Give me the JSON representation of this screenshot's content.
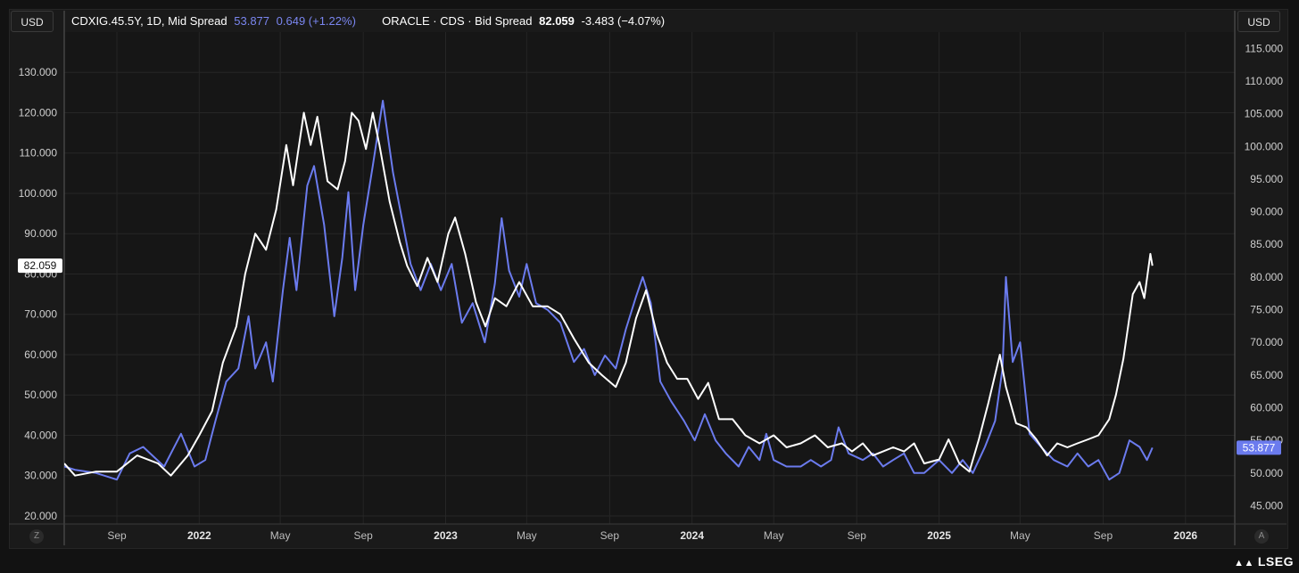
{
  "currency_left": "USD",
  "currency_right": "USD",
  "legend": {
    "series1_name": "CDXIG.45.5Y, 1D, Mid Spread",
    "series1_value": "53.877",
    "series1_change": "0.649 (+1.22%)",
    "series2_name": "ORACLE · CDS · Bid Spread",
    "series2_value": "82.059",
    "series2_change": "-3.483 (−4.07%)"
  },
  "corner_left": "Z",
  "corner_right": "A",
  "watermark": "LSEG",
  "colors": {
    "series1": "#6b7bee",
    "series2": "#ffffff",
    "grid": "#262626"
  },
  "chart_data": {
    "type": "line",
    "left_axis": {
      "ylim": [
        18,
        140
      ],
      "ticks": [
        "20.000",
        "30.000",
        "40.000",
        "50.000",
        "60.000",
        "70.000",
        "80.000",
        "90.000",
        "100.000",
        "110.000",
        "120.000",
        "130.000"
      ],
      "tick_values": [
        20,
        30,
        40,
        50,
        60,
        70,
        80,
        90,
        100,
        110,
        120,
        130
      ],
      "last_value_label": "82.059"
    },
    "right_axis": {
      "ylim": [
        42.2,
        117.5
      ],
      "ticks": [
        "45.000",
        "50.000",
        "55.000",
        "60.000",
        "65.000",
        "70.000",
        "75.000",
        "80.000",
        "85.000",
        "90.000",
        "95.000",
        "100.000",
        "105.000",
        "110.000",
        "115.000"
      ],
      "tick_values": [
        45,
        50,
        55,
        60,
        65,
        70,
        75,
        80,
        85,
        90,
        95,
        100,
        105,
        110,
        115
      ],
      "last_value_label": "53.877"
    },
    "x_axis": {
      "range": [
        "2021-06-15",
        "2026-03-15"
      ],
      "ticks": [
        {
          "label": "Sep",
          "date": "2021-09-01",
          "bold": false
        },
        {
          "label": "2022",
          "date": "2022-01-01",
          "bold": true
        },
        {
          "label": "May",
          "date": "2022-05-01",
          "bold": false
        },
        {
          "label": "Sep",
          "date": "2022-09-01",
          "bold": false
        },
        {
          "label": "2023",
          "date": "2023-01-01",
          "bold": true
        },
        {
          "label": "May",
          "date": "2023-05-01",
          "bold": false
        },
        {
          "label": "Sep",
          "date": "2023-09-01",
          "bold": false
        },
        {
          "label": "2024",
          "date": "2024-01-01",
          "bold": true
        },
        {
          "label": "May",
          "date": "2024-05-01",
          "bold": false
        },
        {
          "label": "Sep",
          "date": "2024-09-01",
          "bold": false
        },
        {
          "label": "2025",
          "date": "2025-01-01",
          "bold": true
        },
        {
          "label": "May",
          "date": "2025-05-01",
          "bold": false
        },
        {
          "label": "Sep",
          "date": "2025-09-01",
          "bold": false
        },
        {
          "label": "2026",
          "date": "2026-01-01",
          "bold": true
        }
      ]
    },
    "grid": true,
    "series": [
      {
        "name": "ORACLE · CDS · Bid Spread",
        "axis": "left",
        "points": [
          [
            "2021-06-15",
            33
          ],
          [
            "2021-07-01",
            30
          ],
          [
            "2021-08-01",
            31
          ],
          [
            "2021-09-01",
            31
          ],
          [
            "2021-10-01",
            35
          ],
          [
            "2021-11-01",
            33
          ],
          [
            "2021-11-20",
            30
          ],
          [
            "2021-12-15",
            35
          ],
          [
            "2022-01-01",
            40
          ],
          [
            "2022-01-20",
            46
          ],
          [
            "2022-02-05",
            58
          ],
          [
            "2022-02-25",
            67
          ],
          [
            "2022-03-10",
            80
          ],
          [
            "2022-03-25",
            90
          ],
          [
            "2022-04-10",
            86
          ],
          [
            "2022-04-25",
            96
          ],
          [
            "2022-05-10",
            112
          ],
          [
            "2022-05-20",
            102
          ],
          [
            "2022-06-05",
            120
          ],
          [
            "2022-06-15",
            112
          ],
          [
            "2022-06-25",
            119
          ],
          [
            "2022-07-10",
            103
          ],
          [
            "2022-07-25",
            101
          ],
          [
            "2022-08-05",
            108
          ],
          [
            "2022-08-15",
            120
          ],
          [
            "2022-08-25",
            118
          ],
          [
            "2022-09-05",
            111
          ],
          [
            "2022-09-15",
            120
          ],
          [
            "2022-09-25",
            112
          ],
          [
            "2022-10-10",
            98
          ],
          [
            "2022-10-25",
            88
          ],
          [
            "2022-11-05",
            82
          ],
          [
            "2022-11-20",
            77
          ],
          [
            "2022-12-05",
            84
          ],
          [
            "2022-12-20",
            78
          ],
          [
            "2023-01-05",
            90
          ],
          [
            "2023-01-15",
            94
          ],
          [
            "2023-01-30",
            85
          ],
          [
            "2023-02-15",
            73
          ],
          [
            "2023-03-01",
            67
          ],
          [
            "2023-03-15",
            74
          ],
          [
            "2023-04-01",
            72
          ],
          [
            "2023-04-20",
            78
          ],
          [
            "2023-05-10",
            72
          ],
          [
            "2023-06-01",
            72
          ],
          [
            "2023-06-20",
            70
          ],
          [
            "2023-07-10",
            64
          ],
          [
            "2023-08-01",
            58
          ],
          [
            "2023-08-20",
            55
          ],
          [
            "2023-09-10",
            52
          ],
          [
            "2023-09-25",
            58
          ],
          [
            "2023-10-10",
            69
          ],
          [
            "2023-10-25",
            76
          ],
          [
            "2023-11-10",
            65
          ],
          [
            "2023-11-25",
            58
          ],
          [
            "2023-12-10",
            54
          ],
          [
            "2023-12-25",
            54
          ],
          [
            "2024-01-10",
            49
          ],
          [
            "2024-01-25",
            53
          ],
          [
            "2024-02-10",
            44
          ],
          [
            "2024-03-01",
            44
          ],
          [
            "2024-03-20",
            40
          ],
          [
            "2024-04-10",
            38
          ],
          [
            "2024-05-01",
            40
          ],
          [
            "2024-05-20",
            37
          ],
          [
            "2024-06-10",
            38
          ],
          [
            "2024-07-01",
            40
          ],
          [
            "2024-07-20",
            37
          ],
          [
            "2024-08-10",
            38
          ],
          [
            "2024-08-25",
            36
          ],
          [
            "2024-09-10",
            38
          ],
          [
            "2024-09-25",
            35
          ],
          [
            "2024-10-10",
            36
          ],
          [
            "2024-10-25",
            37
          ],
          [
            "2024-11-10",
            36
          ],
          [
            "2024-11-25",
            38
          ],
          [
            "2024-12-10",
            33
          ],
          [
            "2025-01-01",
            34
          ],
          [
            "2025-01-15",
            39
          ],
          [
            "2025-01-31",
            33
          ],
          [
            "2025-02-15",
            31
          ],
          [
            "2025-03-01",
            39
          ],
          [
            "2025-03-15",
            48
          ],
          [
            "2025-04-01",
            60
          ],
          [
            "2025-04-10",
            52
          ],
          [
            "2025-04-25",
            43
          ],
          [
            "2025-05-10",
            42
          ],
          [
            "2025-05-25",
            39
          ],
          [
            "2025-06-10",
            35
          ],
          [
            "2025-06-25",
            38
          ],
          [
            "2025-07-10",
            37
          ],
          [
            "2025-07-25",
            38
          ],
          [
            "2025-08-10",
            39
          ],
          [
            "2025-08-25",
            40
          ],
          [
            "2025-09-10",
            44
          ],
          [
            "2025-09-20",
            50
          ],
          [
            "2025-10-01",
            59
          ],
          [
            "2025-10-15",
            75
          ],
          [
            "2025-10-25",
            78
          ],
          [
            "2025-11-01",
            74
          ],
          [
            "2025-11-10",
            85
          ],
          [
            "2025-11-13",
            82.059
          ]
        ]
      },
      {
        "name": "CDXIG.45.5Y, 1D, Mid Spread",
        "axis": "right",
        "points": [
          [
            "2021-06-15",
            51
          ],
          [
            "2021-07-01",
            50.5
          ],
          [
            "2021-08-01",
            50
          ],
          [
            "2021-09-01",
            49
          ],
          [
            "2021-09-20",
            53
          ],
          [
            "2021-10-10",
            54
          ],
          [
            "2021-11-10",
            51
          ],
          [
            "2021-12-05",
            56
          ],
          [
            "2021-12-25",
            51
          ],
          [
            "2022-01-10",
            52
          ],
          [
            "2022-01-25",
            58
          ],
          [
            "2022-02-10",
            64
          ],
          [
            "2022-02-28",
            66
          ],
          [
            "2022-03-15",
            74
          ],
          [
            "2022-03-25",
            66
          ],
          [
            "2022-04-10",
            70
          ],
          [
            "2022-04-20",
            64
          ],
          [
            "2022-05-05",
            78
          ],
          [
            "2022-05-15",
            86
          ],
          [
            "2022-05-25",
            78
          ],
          [
            "2022-06-10",
            94
          ],
          [
            "2022-06-20",
            97
          ],
          [
            "2022-07-05",
            88
          ],
          [
            "2022-07-20",
            74
          ],
          [
            "2022-08-01",
            83
          ],
          [
            "2022-08-10",
            93
          ],
          [
            "2022-08-20",
            78
          ],
          [
            "2022-09-01",
            88
          ],
          [
            "2022-09-15",
            97
          ],
          [
            "2022-09-30",
            107
          ],
          [
            "2022-10-15",
            96
          ],
          [
            "2022-10-30",
            88
          ],
          [
            "2022-11-10",
            82
          ],
          [
            "2022-11-25",
            78
          ],
          [
            "2022-12-10",
            82
          ],
          [
            "2022-12-25",
            78
          ],
          [
            "2023-01-10",
            82
          ],
          [
            "2023-01-25",
            73
          ],
          [
            "2023-02-10",
            76
          ],
          [
            "2023-02-28",
            70
          ],
          [
            "2023-03-15",
            79
          ],
          [
            "2023-03-25",
            89
          ],
          [
            "2023-04-05",
            81
          ],
          [
            "2023-04-20",
            77
          ],
          [
            "2023-05-01",
            82
          ],
          [
            "2023-05-15",
            76
          ],
          [
            "2023-06-01",
            75
          ],
          [
            "2023-06-20",
            73
          ],
          [
            "2023-07-10",
            67
          ],
          [
            "2023-07-25",
            69
          ],
          [
            "2023-08-10",
            65
          ],
          [
            "2023-08-25",
            68
          ],
          [
            "2023-09-10",
            66
          ],
          [
            "2023-09-25",
            72
          ],
          [
            "2023-10-10",
            77
          ],
          [
            "2023-10-20",
            80
          ],
          [
            "2023-11-01",
            76
          ],
          [
            "2023-11-15",
            64
          ],
          [
            "2023-12-01",
            61
          ],
          [
            "2023-12-20",
            58
          ],
          [
            "2024-01-05",
            55
          ],
          [
            "2024-01-20",
            59
          ],
          [
            "2024-02-05",
            55
          ],
          [
            "2024-02-20",
            53
          ],
          [
            "2024-03-10",
            51
          ],
          [
            "2024-03-25",
            54
          ],
          [
            "2024-04-10",
            52
          ],
          [
            "2024-04-20",
            56
          ],
          [
            "2024-05-01",
            52
          ],
          [
            "2024-05-20",
            51
          ],
          [
            "2024-06-10",
            51
          ],
          [
            "2024-06-25",
            52
          ],
          [
            "2024-07-10",
            51
          ],
          [
            "2024-07-25",
            52
          ],
          [
            "2024-08-05",
            57
          ],
          [
            "2024-08-20",
            53
          ],
          [
            "2024-09-10",
            52
          ],
          [
            "2024-09-25",
            53
          ],
          [
            "2024-10-10",
            51
          ],
          [
            "2024-10-25",
            52
          ],
          [
            "2024-11-10",
            53
          ],
          [
            "2024-11-25",
            50
          ],
          [
            "2024-12-10",
            50
          ],
          [
            "2025-01-01",
            52
          ],
          [
            "2025-01-20",
            50
          ],
          [
            "2025-02-05",
            52
          ],
          [
            "2025-02-20",
            50
          ],
          [
            "2025-03-10",
            54
          ],
          [
            "2025-03-25",
            58
          ],
          [
            "2025-04-05",
            66
          ],
          [
            "2025-04-10",
            80
          ],
          [
            "2025-04-20",
            67
          ],
          [
            "2025-05-01",
            70
          ],
          [
            "2025-05-15",
            56
          ],
          [
            "2025-06-01",
            54
          ],
          [
            "2025-06-20",
            52
          ],
          [
            "2025-07-10",
            51
          ],
          [
            "2025-07-25",
            53
          ],
          [
            "2025-08-10",
            51
          ],
          [
            "2025-08-25",
            52
          ],
          [
            "2025-09-10",
            49
          ],
          [
            "2025-09-25",
            50
          ],
          [
            "2025-10-10",
            55
          ],
          [
            "2025-10-25",
            54
          ],
          [
            "2025-11-05",
            52
          ],
          [
            "2025-11-13",
            53.877
          ]
        ]
      }
    ]
  }
}
